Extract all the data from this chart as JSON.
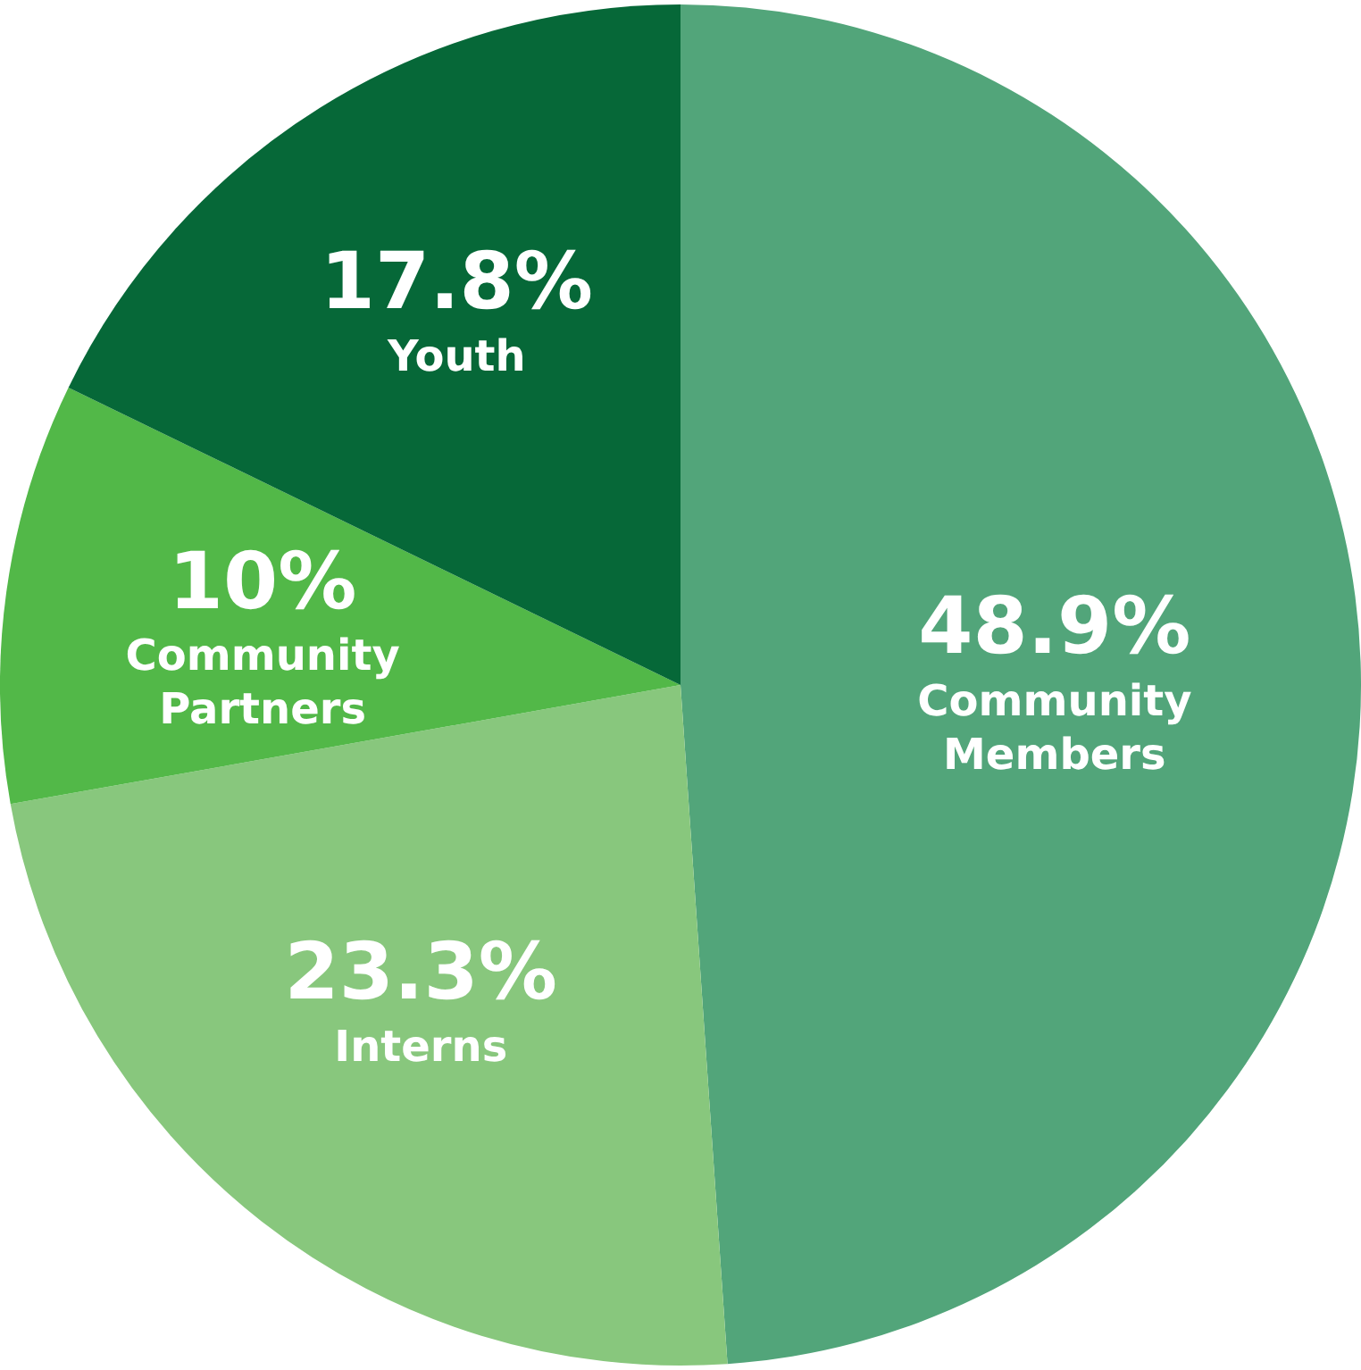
{
  "chart_data": {
    "type": "pie",
    "categories": [
      "Community Members",
      "Interns",
      "Community Partners",
      "Youth"
    ],
    "values": [
      48.9,
      23.3,
      10,
      17.8
    ],
    "colors": [
      "#52a57a",
      "#88c77d",
      "#52b848",
      "#066838"
    ],
    "value_labels": [
      "48.9%",
      "23.3%",
      "10%",
      "17.8%"
    ],
    "legend": false
  }
}
